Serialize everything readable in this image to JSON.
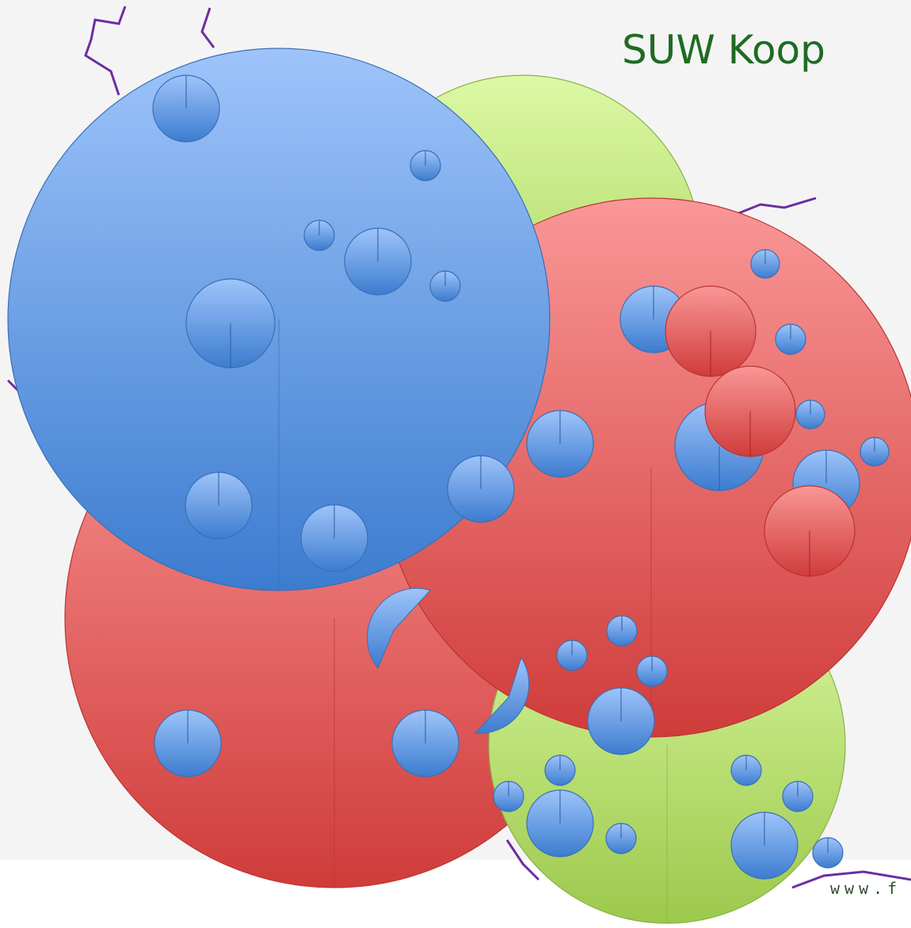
{
  "header": {
    "title": "SUW Koop"
  },
  "footer": {
    "url": "www.f"
  }
}
